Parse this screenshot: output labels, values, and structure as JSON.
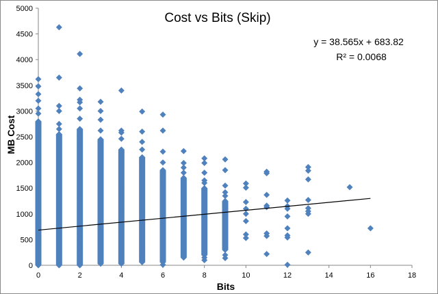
{
  "chart_data": {
    "type": "scatter",
    "title": "Cost vs Bits (Skip)",
    "xlabel": "Bits",
    "ylabel": "MB Cost",
    "xlim": [
      0,
      18
    ],
    "ylim": [
      0,
      5000
    ],
    "x_ticks": [
      "0",
      "2",
      "4",
      "6",
      "8",
      "10",
      "12",
      "14",
      "16",
      "18"
    ],
    "y_ticks": [
      "0",
      "500",
      "1000",
      "1500",
      "2000",
      "2500",
      "3000",
      "3500",
      "4000",
      "4500",
      "5000"
    ],
    "grid": false,
    "legend": "none",
    "marker_color": "#4f81bd",
    "trendline": {
      "equation": "y = 38.565x + 683.82",
      "r_squared": "R² = 0.0068",
      "slope": 38.565,
      "intercept": 683.82,
      "x_range": [
        0,
        16
      ],
      "color": "#000000"
    },
    "series": [
      {
        "dense_columns": [
          {
            "x": 0,
            "y_min": 0,
            "y_max": 2800
          },
          {
            "x": 1,
            "y_min": 0,
            "y_max": 2550
          },
          {
            "x": 2,
            "y_min": 0,
            "y_max": 2650
          },
          {
            "x": 3,
            "y_min": 30,
            "y_max": 2450
          },
          {
            "x": 4,
            "y_min": 30,
            "y_max": 2250
          },
          {
            "x": 5,
            "y_min": 60,
            "y_max": 2100
          },
          {
            "x": 6,
            "y_min": 60,
            "y_max": 1850
          },
          {
            "x": 7,
            "y_min": 150,
            "y_max": 1700
          },
          {
            "x": 8,
            "y_min": 200,
            "y_max": 1500
          },
          {
            "x": 9,
            "y_min": 300,
            "y_max": 1250
          }
        ],
        "points": [
          {
            "x": 0,
            "y": 3620
          },
          {
            "x": 0,
            "y": 3480
          },
          {
            "x": 0,
            "y": 3330
          },
          {
            "x": 0,
            "y": 3200
          },
          {
            "x": 0,
            "y": 3050
          },
          {
            "x": 0,
            "y": 2950
          },
          {
            "x": 1,
            "y": 4630
          },
          {
            "x": 1,
            "y": 3650
          },
          {
            "x": 1,
            "y": 3100
          },
          {
            "x": 1,
            "y": 3000
          },
          {
            "x": 1,
            "y": 2750
          },
          {
            "x": 1,
            "y": 2650
          },
          {
            "x": 2,
            "y": 4110
          },
          {
            "x": 2,
            "y": 3440
          },
          {
            "x": 2,
            "y": 3220
          },
          {
            "x": 2,
            "y": 3170
          },
          {
            "x": 2,
            "y": 3050
          },
          {
            "x": 2,
            "y": 2850
          },
          {
            "x": 3,
            "y": 3180
          },
          {
            "x": 3,
            "y": 3000
          },
          {
            "x": 3,
            "y": 2830
          },
          {
            "x": 3,
            "y": 2620
          },
          {
            "x": 4,
            "y": 3400
          },
          {
            "x": 4,
            "y": 2620
          },
          {
            "x": 4,
            "y": 2580
          },
          {
            "x": 4,
            "y": 2460
          },
          {
            "x": 5,
            "y": 2990
          },
          {
            "x": 5,
            "y": 2600
          },
          {
            "x": 5,
            "y": 2400
          },
          {
            "x": 5,
            "y": 2250
          },
          {
            "x": 6,
            "y": 2930
          },
          {
            "x": 6,
            "y": 2620
          },
          {
            "x": 6,
            "y": 2210
          },
          {
            "x": 6,
            "y": 2000
          },
          {
            "x": 6,
            "y": 10
          },
          {
            "x": 7,
            "y": 2220
          },
          {
            "x": 7,
            "y": 1990
          },
          {
            "x": 7,
            "y": 1900
          },
          {
            "x": 7,
            "y": 1800
          },
          {
            "x": 8,
            "y": 2080
          },
          {
            "x": 8,
            "y": 1990
          },
          {
            "x": 8,
            "y": 1800
          },
          {
            "x": 8,
            "y": 1650
          },
          {
            "x": 8,
            "y": 1600
          },
          {
            "x": 8,
            "y": 150
          },
          {
            "x": 8,
            "y": 100
          },
          {
            "x": 9,
            "y": 2060
          },
          {
            "x": 9,
            "y": 1850
          },
          {
            "x": 9,
            "y": 1550
          },
          {
            "x": 9,
            "y": 1420
          },
          {
            "x": 9,
            "y": 1350
          },
          {
            "x": 9,
            "y": 200
          },
          {
            "x": 9,
            "y": 140
          },
          {
            "x": 10,
            "y": 1590
          },
          {
            "x": 10,
            "y": 1510
          },
          {
            "x": 10,
            "y": 1230
          },
          {
            "x": 10,
            "y": 1100
          },
          {
            "x": 10,
            "y": 1000
          },
          {
            "x": 10,
            "y": 860
          },
          {
            "x": 10,
            "y": 600
          },
          {
            "x": 10,
            "y": 530
          },
          {
            "x": 11,
            "y": 1820
          },
          {
            "x": 11,
            "y": 1790
          },
          {
            "x": 11,
            "y": 1370
          },
          {
            "x": 11,
            "y": 1160
          },
          {
            "x": 11,
            "y": 1130
          },
          {
            "x": 11,
            "y": 620
          },
          {
            "x": 11,
            "y": 570
          },
          {
            "x": 11,
            "y": 220
          },
          {
            "x": 12,
            "y": 1260
          },
          {
            "x": 12,
            "y": 1150
          },
          {
            "x": 12,
            "y": 1100
          },
          {
            "x": 12,
            "y": 950
          },
          {
            "x": 12,
            "y": 720
          },
          {
            "x": 12,
            "y": 580
          },
          {
            "x": 12,
            "y": 540
          },
          {
            "x": 12,
            "y": 10
          },
          {
            "x": 13,
            "y": 1910
          },
          {
            "x": 13,
            "y": 1840
          },
          {
            "x": 13,
            "y": 1670
          },
          {
            "x": 13,
            "y": 1270
          },
          {
            "x": 13,
            "y": 1110
          },
          {
            "x": 13,
            "y": 1050
          },
          {
            "x": 13,
            "y": 1000
          },
          {
            "x": 13,
            "y": 250
          },
          {
            "x": 15,
            "y": 1520
          },
          {
            "x": 16,
            "y": 720
          }
        ]
      }
    ]
  }
}
